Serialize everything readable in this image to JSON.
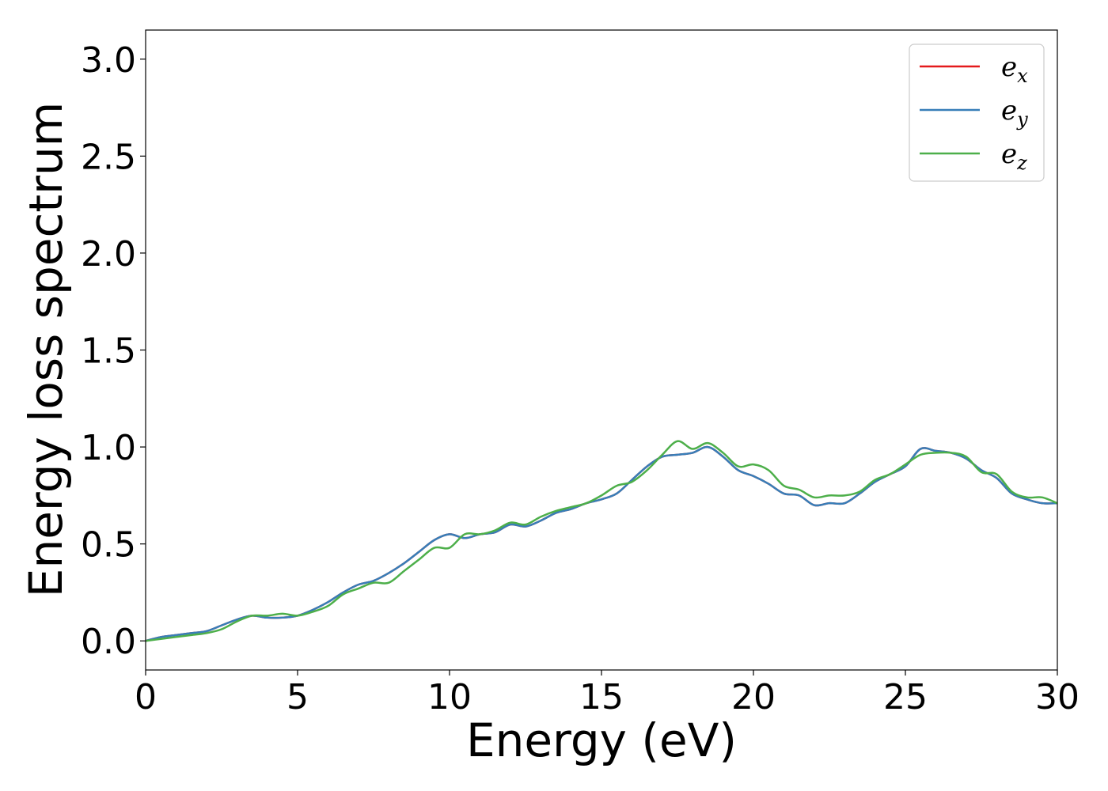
{
  "chart_data": {
    "type": "line",
    "title": "",
    "xlabel": "Energy (eV)",
    "ylabel": "Energy loss spectrum",
    "xlim": [
      0,
      30
    ],
    "ylim": [
      -0.15,
      3.15
    ],
    "xticks": [
      0,
      5,
      10,
      15,
      20,
      25,
      30
    ],
    "yticks": [
      0.0,
      0.5,
      1.0,
      1.5,
      2.0,
      2.5,
      3.0
    ],
    "xtick_labels": [
      "0",
      "5",
      "10",
      "15",
      "20",
      "25",
      "30"
    ],
    "ytick_labels": [
      "0.0",
      "0.5",
      "1.0",
      "1.5",
      "2.0",
      "2.5",
      "3.0"
    ],
    "grid": false,
    "legend_position": "top-right",
    "series": [
      {
        "name": "e",
        "subscript": "x",
        "color": "#e41a1c",
        "x": [
          0,
          0.5,
          1,
          1.5,
          2,
          2.5,
          3,
          3.5,
          4,
          4.5,
          5,
          5.5,
          6,
          6.5,
          7,
          7.5,
          8,
          8.5,
          9,
          9.5,
          10,
          10.5,
          11,
          11.5,
          12,
          12.5,
          13,
          13.5,
          14,
          14.5,
          15,
          15.5,
          16,
          16.5,
          17,
          17.5,
          18,
          18.5,
          19,
          19.5,
          20,
          20.5,
          21,
          21.5,
          22,
          22.5,
          23,
          23.5,
          24,
          24.5,
          25,
          25.5,
          26,
          26.5,
          27,
          27.5,
          28,
          28.5,
          29,
          29.5,
          30
        ],
        "y": [
          0.0,
          0.02,
          0.03,
          0.04,
          0.05,
          0.08,
          0.11,
          0.13,
          0.12,
          0.12,
          0.13,
          0.16,
          0.2,
          0.25,
          0.29,
          0.31,
          0.35,
          0.4,
          0.46,
          0.52,
          0.55,
          0.53,
          0.55,
          0.56,
          0.6,
          0.59,
          0.62,
          0.66,
          0.68,
          0.71,
          0.73,
          0.76,
          0.83,
          0.9,
          0.95,
          0.96,
          0.97,
          1.0,
          0.95,
          0.88,
          0.85,
          0.81,
          0.76,
          0.75,
          0.7,
          0.71,
          0.71,
          0.76,
          0.82,
          0.86,
          0.9,
          0.99,
          0.98,
          0.97,
          0.94,
          0.88,
          0.84,
          0.76,
          0.73,
          0.71,
          0.71
        ]
      },
      {
        "name": "e",
        "subscript": "y",
        "color": "#377eb8",
        "x": [
          0,
          0.5,
          1,
          1.5,
          2,
          2.5,
          3,
          3.5,
          4,
          4.5,
          5,
          5.5,
          6,
          6.5,
          7,
          7.5,
          8,
          8.5,
          9,
          9.5,
          10,
          10.5,
          11,
          11.5,
          12,
          12.5,
          13,
          13.5,
          14,
          14.5,
          15,
          15.5,
          16,
          16.5,
          17,
          17.5,
          18,
          18.5,
          19,
          19.5,
          20,
          20.5,
          21,
          21.5,
          22,
          22.5,
          23,
          23.5,
          24,
          24.5,
          25,
          25.5,
          26,
          26.5,
          27,
          27.5,
          28,
          28.5,
          29,
          29.5,
          30
        ],
        "y": [
          0.0,
          0.02,
          0.03,
          0.04,
          0.05,
          0.08,
          0.11,
          0.13,
          0.12,
          0.12,
          0.13,
          0.16,
          0.2,
          0.25,
          0.29,
          0.31,
          0.35,
          0.4,
          0.46,
          0.52,
          0.55,
          0.53,
          0.55,
          0.56,
          0.6,
          0.59,
          0.62,
          0.66,
          0.68,
          0.71,
          0.73,
          0.76,
          0.83,
          0.9,
          0.95,
          0.96,
          0.97,
          1.0,
          0.95,
          0.88,
          0.85,
          0.81,
          0.76,
          0.75,
          0.7,
          0.71,
          0.71,
          0.76,
          0.82,
          0.86,
          0.9,
          0.99,
          0.98,
          0.97,
          0.94,
          0.88,
          0.84,
          0.76,
          0.73,
          0.71,
          0.71
        ]
      },
      {
        "name": "e",
        "subscript": "z",
        "color": "#4daf4a",
        "x": [
          0,
          0.5,
          1,
          1.5,
          2,
          2.5,
          3,
          3.5,
          4,
          4.5,
          5,
          5.5,
          6,
          6.5,
          7,
          7.5,
          8,
          8.5,
          9,
          9.5,
          10,
          10.5,
          11,
          11.5,
          12,
          12.5,
          13,
          13.5,
          14,
          14.5,
          15,
          15.5,
          16,
          16.5,
          17,
          17.5,
          18,
          18.5,
          19,
          19.5,
          20,
          20.5,
          21,
          21.5,
          22,
          22.5,
          23,
          23.5,
          24,
          24.5,
          25,
          25.5,
          26,
          26.5,
          27,
          27.5,
          28,
          28.5,
          29,
          29.5,
          30
        ],
        "y": [
          0.0,
          0.01,
          0.02,
          0.03,
          0.04,
          0.06,
          0.1,
          0.13,
          0.13,
          0.14,
          0.13,
          0.15,
          0.18,
          0.24,
          0.27,
          0.3,
          0.3,
          0.36,
          0.42,
          0.48,
          0.48,
          0.55,
          0.55,
          0.57,
          0.61,
          0.6,
          0.64,
          0.67,
          0.69,
          0.71,
          0.75,
          0.8,
          0.82,
          0.88,
          0.96,
          1.03,
          0.99,
          1.02,
          0.97,
          0.9,
          0.91,
          0.88,
          0.8,
          0.78,
          0.74,
          0.75,
          0.75,
          0.77,
          0.83,
          0.86,
          0.91,
          0.96,
          0.97,
          0.97,
          0.95,
          0.87,
          0.86,
          0.77,
          0.74,
          0.74,
          0.71
        ]
      }
    ]
  }
}
